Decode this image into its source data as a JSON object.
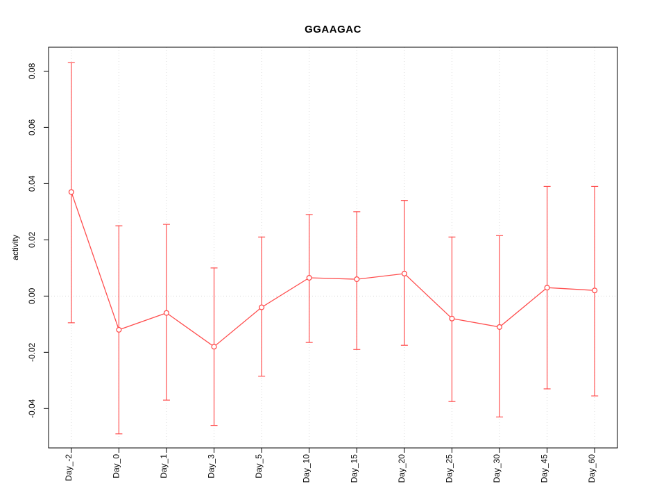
{
  "chart_data": {
    "type": "line",
    "title": "GGAAGAC",
    "xlabel": "",
    "ylabel": "activity",
    "categories": [
      "Day_-2",
      "Day_0",
      "Day_1",
      "Day_3",
      "Day_5",
      "Day_10",
      "Day_15",
      "Day_20",
      "Day_25",
      "Day_30",
      "Day_45",
      "Day_60"
    ],
    "series": [
      {
        "name": "activity_mean",
        "values": [
          0.037,
          -0.012,
          -0.006,
          -0.018,
          -0.004,
          0.0065,
          0.006,
          0.008,
          -0.008,
          -0.011,
          0.003,
          0.002
        ]
      },
      {
        "name": "errorbar_upper",
        "values": [
          0.083,
          0.025,
          0.0255,
          0.01,
          0.021,
          0.029,
          0.03,
          0.034,
          0.021,
          0.0215,
          0.039,
          0.039
        ]
      },
      {
        "name": "errorbar_lower",
        "values": [
          -0.0095,
          -0.049,
          -0.037,
          -0.046,
          -0.0285,
          -0.0165,
          -0.019,
          -0.0175,
          -0.0375,
          -0.043,
          -0.033,
          -0.0355
        ]
      }
    ],
    "ylim": [
      -0.054,
      0.0885
    ],
    "yticks": [
      -0.04,
      -0.02,
      0,
      0.02,
      0.04,
      0.06,
      0.08
    ],
    "ytick_labels": [
      "-0.04",
      "-0.02",
      "0.00",
      "0.02",
      "0.04",
      "0.06",
      "0.08"
    ],
    "grid": "dotted vertical at each category, dotted horizontal at 0",
    "legend_position": "none",
    "series_color": "#ff4d4d",
    "grid_color": "#d9d9d9",
    "point_style": "open-circle"
  }
}
